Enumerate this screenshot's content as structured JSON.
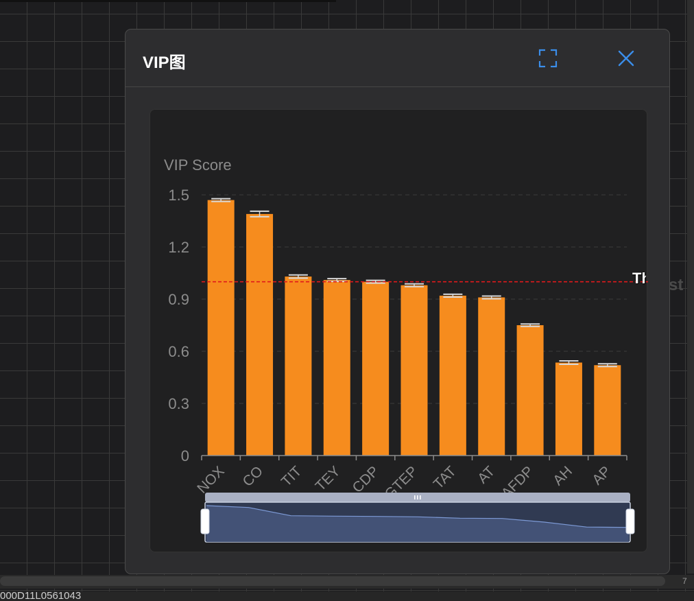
{
  "dialog": {
    "title": "VIP图"
  },
  "threshold_label": "Th",
  "ghost_label": "st",
  "bottom_text": "000D11L0561043",
  "corner_text": "7",
  "colors": {
    "bar": "#f68c1e",
    "threshold": "#e0191b",
    "accent": "#3b8eea",
    "error_bar": "#d8d8d8"
  },
  "icons": {
    "fullscreen": "fullscreen-icon",
    "close": "close-icon"
  },
  "chart_data": {
    "type": "bar",
    "ylabel": "VIP Score",
    "xlabel": "",
    "title": "",
    "ylim": [
      0,
      1.5
    ],
    "yticks": [
      "0",
      "0.3",
      "0.6",
      "0.9",
      "1.2",
      "1.5"
    ],
    "ytick_values": [
      0,
      0.3,
      0.6,
      0.9,
      1.2,
      1.5
    ],
    "categories": [
      "NOX",
      "CO",
      "TIT",
      "TEY",
      "CDP",
      "GTEP",
      "TAT",
      "AT",
      "AFDP",
      "AH",
      "AP"
    ],
    "values": [
      1.47,
      1.39,
      1.03,
      1.01,
      1.0,
      0.98,
      0.92,
      0.91,
      0.75,
      0.535,
      0.52
    ],
    "errors": [
      0.004,
      0.012,
      0.005,
      0.004,
      0.004,
      0.004,
      0.004,
      0.004,
      0.003,
      0.006,
      0.004
    ],
    "threshold": 1.0,
    "grid": true,
    "datazoom": {
      "start": 0,
      "end": 100
    }
  }
}
